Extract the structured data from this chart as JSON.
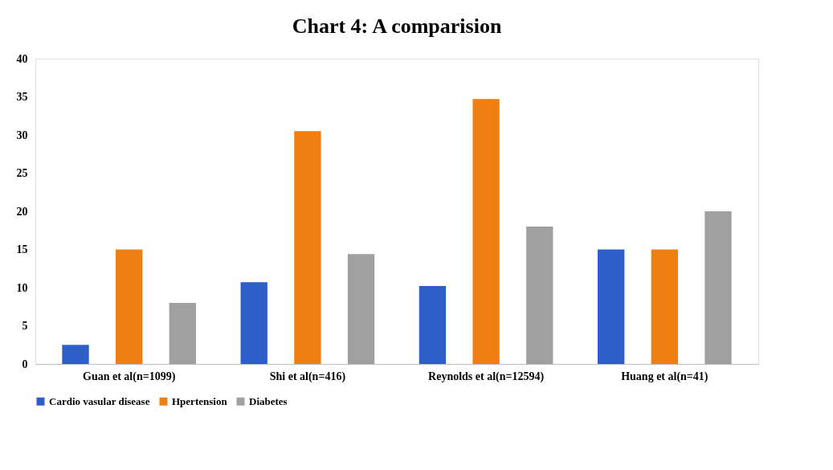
{
  "chart_data": {
    "type": "bar",
    "title": "Chart 4: A comparision",
    "categories": [
      "Guan et al(n=1099)",
      "Shi et al(n=416)",
      "Reynolds et al(n=12594)",
      "Huang et al(n=41)"
    ],
    "series": [
      {
        "name": "Cardio vasular disease",
        "color": "#2e5fc8",
        "values": [
          2.5,
          10.7,
          10.2,
          15
        ]
      },
      {
        "name": "Hpertension",
        "color": "#f07f12",
        "values": [
          15,
          30.5,
          34.7,
          15
        ]
      },
      {
        "name": "Diabetes",
        "color": "#a0a0a0",
        "values": [
          8,
          14.4,
          18,
          20
        ]
      }
    ],
    "ylim": [
      0,
      40
    ],
    "yticks": [
      0,
      5,
      10,
      15,
      20,
      25,
      30,
      35,
      40
    ],
    "grid": false,
    "legend": "bottom"
  }
}
